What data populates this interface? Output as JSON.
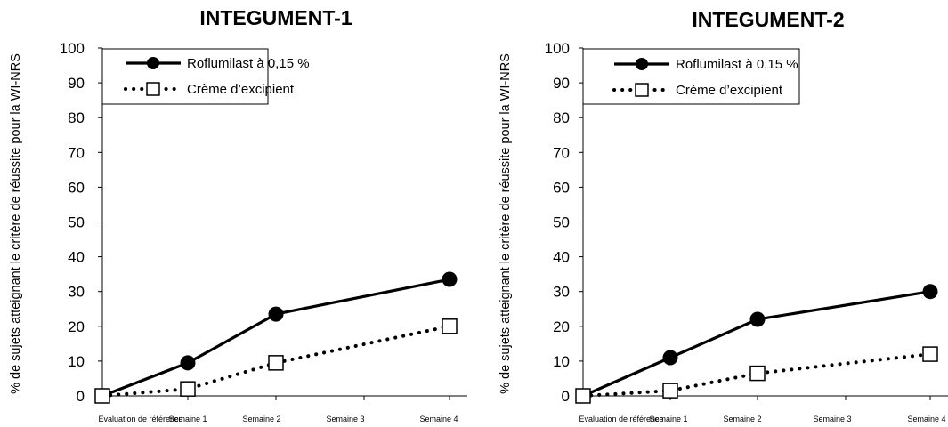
{
  "chart_data": [
    {
      "type": "line",
      "title": "INTEGUMENT-1",
      "xlabel": "",
      "ylabel": "% de sujets atteignant le critère de réussite pour la WI-NRS",
      "categories": [
        "Évaluation de référence",
        "Semaine 1",
        "Semaine 2",
        "Semaine 3",
        "Semaine 4"
      ],
      "ylim": [
        0,
        100
      ],
      "yticks": [
        0,
        10,
        20,
        30,
        40,
        50,
        60,
        70,
        80,
        90,
        100
      ],
      "grid": false,
      "legend_position": "top",
      "series": [
        {
          "name": "Roflumilast à 0,15 %",
          "style": "solid-filled-circle",
          "color": "#000000",
          "points": [
            {
              "x": "Évaluation de référence",
              "y": 0
            },
            {
              "x": "Semaine 1",
              "y": 9.5
            },
            {
              "x": "Semaine 2",
              "y": 23.5
            },
            {
              "x": "Semaine 4",
              "y": 33.5
            }
          ]
        },
        {
          "name": "Crème d’excipient",
          "style": "dotted-open-square",
          "color": "#000000",
          "points": [
            {
              "x": "Évaluation de référence",
              "y": 0
            },
            {
              "x": "Semaine 1",
              "y": 2
            },
            {
              "x": "Semaine 2",
              "y": 9.5
            },
            {
              "x": "Semaine 4",
              "y": 20
            }
          ]
        }
      ]
    },
    {
      "type": "line",
      "title": "INTEGUMENT-2",
      "xlabel": "",
      "ylabel": "% de sujets atteignant le critère de réussite pour la WI-NRS",
      "categories": [
        "Évaluation de référence",
        "Semaine 1",
        "Semaine 2",
        "Semaine 3",
        "Semaine 4"
      ],
      "ylim": [
        0,
        100
      ],
      "yticks": [
        0,
        10,
        20,
        30,
        40,
        50,
        60,
        70,
        80,
        90,
        100
      ],
      "grid": false,
      "legend_position": "top",
      "series": [
        {
          "name": "Roflumilast à 0,15 %",
          "style": "solid-filled-circle",
          "color": "#000000",
          "points": [
            {
              "x": "Évaluation de référence",
              "y": 0
            },
            {
              "x": "Semaine 1",
              "y": 11
            },
            {
              "x": "Semaine 2",
              "y": 22
            },
            {
              "x": "Semaine 4",
              "y": 30
            }
          ]
        },
        {
          "name": "Crème d’excipient",
          "style": "dotted-open-square",
          "color": "#000000",
          "points": [
            {
              "x": "Évaluation de référence",
              "y": 0
            },
            {
              "x": "Semaine 1",
              "y": 1.5
            },
            {
              "x": "Semaine 2",
              "y": 6.5
            },
            {
              "x": "Semaine 4",
              "y": 12
            }
          ]
        }
      ]
    }
  ]
}
